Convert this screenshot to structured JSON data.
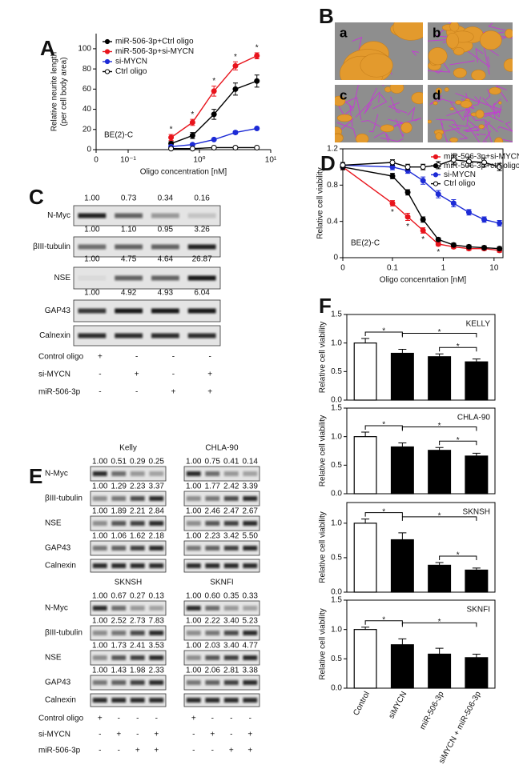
{
  "panel_labels": {
    "A": "A",
    "B": "B",
    "C": "C",
    "D": "D",
    "E": "E",
    "F": "F"
  },
  "micrographs": {
    "labels": [
      "a",
      "b",
      "c",
      "d"
    ]
  },
  "chart_data": [
    {
      "type": "line",
      "text": "BE(2)-C",
      "xlabel": "Oligo concentration [nM]",
      "ylabel": [
        "Relative neurite length",
        "(per cell body area)"
      ],
      "xscale": "log",
      "x": [
        0.4,
        0.8,
        1.6,
        3.2,
        6.4
      ],
      "xlim": [
        0,
        10
      ],
      "xticks": [
        0,
        {
          "value": 0.1,
          "label": "10⁻¹"
        },
        {
          "value": 1,
          "label": "10⁰"
        },
        {
          "value": 10,
          "label": "10¹"
        }
      ],
      "ylim": [
        0,
        115
      ],
      "yticks": [
        0,
        20,
        40,
        60,
        80,
        100
      ],
      "legend": "upper left",
      "series": [
        {
          "name": "miR-506-3p+Ctrl oligo",
          "color": "#000000",
          "filled": true,
          "values": [
            6,
            14,
            35,
            60,
            68
          ],
          "errors": [
            2,
            3,
            5,
            6,
            6
          ]
        },
        {
          "name": "miR-506-3p+si-MYCN",
          "color": "#e8141c",
          "filled": true,
          "values": [
            12,
            27,
            58,
            83,
            93
          ],
          "errors": [
            3,
            3,
            5,
            4,
            3
          ]
        },
        {
          "name": "si-MYCN",
          "color": "#1d2bd6",
          "filled": true,
          "values": [
            3,
            5,
            10,
            17,
            21
          ],
          "errors": [
            1,
            1,
            1,
            1.5,
            1
          ]
        },
        {
          "name": "Ctrl oligo",
          "color": "#000000",
          "filled": false,
          "values": [
            1,
            1,
            2,
            2,
            2
          ],
          "errors": [
            0.5,
            0.5,
            0.5,
            0.5,
            0.5
          ]
        }
      ],
      "stars": [
        "*",
        "*",
        "*",
        "*",
        "*"
      ]
    },
    {
      "type": "line",
      "text": "BE(2)-C",
      "xlabel": "Oligo concenrtation [nM]",
      "ylabel": [
        "Relative cell viability"
      ],
      "xscale": "log",
      "x": [
        0,
        0.1,
        0.2,
        0.4,
        0.8,
        1.6,
        3.2,
        6.4,
        12.8
      ],
      "xlim": [
        0,
        15
      ],
      "xticks": [
        0,
        0.1,
        1,
        10
      ],
      "ylim": [
        0,
        1.2
      ],
      "yticks": [
        0,
        0.4,
        0.8,
        1.2
      ],
      "legend": "upper right",
      "series": [
        {
          "name": "miR-506-3p+si-MYCN",
          "color": "#e8141c",
          "filled": true,
          "values": [
            1.0,
            0.6,
            0.45,
            0.3,
            0.15,
            0.12,
            0.1,
            0.1,
            0.08
          ],
          "errors": [
            0.03,
            0.03,
            0.04,
            0.03,
            0.02,
            0.02,
            0.02,
            0.02,
            0.02
          ]
        },
        {
          "name": "miR-506-3p+ctrl oligo",
          "color": "#000000",
          "filled": true,
          "values": [
            1.0,
            0.9,
            0.72,
            0.42,
            0.2,
            0.14,
            0.12,
            0.11,
            0.1
          ],
          "errors": [
            0.03,
            0.03,
            0.03,
            0.03,
            0.02,
            0.02,
            0.02,
            0.02,
            0.02
          ]
        },
        {
          "name": "si-MYCN",
          "color": "#1d2bd6",
          "filled": true,
          "values": [
            1.02,
            1.0,
            0.96,
            0.85,
            0.7,
            0.6,
            0.5,
            0.42,
            0.38
          ],
          "errors": [
            0.03,
            0.03,
            0.03,
            0.04,
            0.04,
            0.04,
            0.03,
            0.03,
            0.03
          ]
        },
        {
          "name": "Ctrl oligo",
          "color": "#000000",
          "filled": false,
          "values": [
            1.02,
            1.05,
            1.0,
            1.0,
            1.02,
            1.08,
            1.06,
            1.05,
            1.0
          ],
          "errors": [
            0.03,
            0.03,
            0.03,
            0.03,
            0.04,
            0.05,
            0.05,
            0.05,
            0.04
          ]
        }
      ],
      "stars": [
        null,
        "*",
        "*",
        "*",
        "*",
        null,
        null,
        null,
        null
      ]
    },
    {
      "type": "bar",
      "text": "KELLY",
      "ylabel": "Relative cell viability",
      "values": [
        1.0,
        0.82,
        0.76,
        0.67
      ],
      "errors": [
        0.08,
        0.07,
        0.05,
        0.05
      ],
      "colors": [
        "#ffffff",
        "#000000",
        "#000000",
        "#000000"
      ],
      "edgecolor": "#000000",
      "ylim": [
        0,
        1.5
      ],
      "yticks": [
        {
          "value": 0,
          "label": "0.0"
        },
        0.5,
        {
          "value": 1,
          "label": "1.0"
        },
        1.5
      ],
      "annotations": [
        "*",
        "*",
        "*"
      ]
    },
    {
      "type": "bar",
      "text": "CHLA-90",
      "ylabel": "Relative cell viability",
      "values": [
        1.0,
        0.82,
        0.76,
        0.66
      ],
      "errors": [
        0.08,
        0.07,
        0.05,
        0.05
      ],
      "colors": [
        "#ffffff",
        "#000000",
        "#000000",
        "#000000"
      ],
      "edgecolor": "#000000",
      "ylim": [
        0,
        1.5
      ],
      "yticks": [
        {
          "value": 0,
          "label": "0.0"
        },
        0.5,
        {
          "value": 1,
          "label": "1.0"
        },
        1.5
      ],
      "annotations": [
        "*",
        "*",
        "*"
      ]
    },
    {
      "type": "bar",
      "text": "SKNSH",
      "ylabel": "Relative cell viability",
      "values": [
        1.0,
        0.76,
        0.39,
        0.32
      ],
      "errors": [
        0.06,
        0.1,
        0.04,
        0.03
      ],
      "colors": [
        "#ffffff",
        "#000000",
        "#000000",
        "#000000"
      ],
      "edgecolor": "#000000",
      "ylim": [
        0,
        1.3
      ],
      "yticks": [
        {
          "value": 0,
          "label": "0.0"
        },
        0.5,
        {
          "value": 1,
          "label": "1.0"
        }
      ],
      "annotations": [
        "*",
        "*",
        "*"
      ]
    },
    {
      "type": "bar",
      "text": "SKNFI",
      "ylabel": "Relative cell viability",
      "categories": [
        "Control",
        "siMYCN",
        "miR-506-3p",
        "siMYCN + miR-506-3p"
      ],
      "values": [
        1.0,
        0.74,
        0.58,
        0.52
      ],
      "errors": [
        0.04,
        0.1,
        0.1,
        0.06
      ],
      "colors": [
        "#ffffff",
        "#000000",
        "#000000",
        "#000000"
      ],
      "edgecolor": "#000000",
      "ylim": [
        0,
        1.5
      ],
      "yticks": [
        {
          "value": 0,
          "label": "0.0"
        },
        0.5,
        {
          "value": 1,
          "label": "1.0"
        },
        1.5
      ],
      "annotations": [
        "*",
        "*"
      ]
    }
  ],
  "blot_c": {
    "rows": [
      {
        "name": "N-Myc",
        "quant": [
          "1.00",
          "0.73",
          "0.34",
          "0.16"
        ]
      },
      {
        "name": "βIII-tubulin",
        "quant": [
          "1.00",
          "1.10",
          "0.95",
          "3.26"
        ]
      },
      {
        "name": "NSE",
        "quant": [
          "1.00",
          "4.75",
          "4.64",
          "26.87"
        ]
      },
      {
        "name": "GAP43",
        "quant": [
          "1.00",
          "4.92",
          "4.93",
          "6.04"
        ]
      },
      {
        "name": "Calnexin"
      }
    ],
    "treatments": [
      {
        "name": "Control oligo",
        "marks": [
          "+",
          "-",
          "-",
          "-"
        ]
      },
      {
        "name": "si-MYCN",
        "marks": [
          "-",
          "+",
          "-",
          "+"
        ]
      },
      {
        "name": "miR-506-3p",
        "marks": [
          "-",
          "-",
          "+",
          "+"
        ]
      }
    ]
  },
  "blot_e": {
    "blocks": [
      {
        "row_names": [
          "N-Myc",
          "βIII-tubulin",
          "NSE",
          "GAP43",
          "Calnexin"
        ],
        "cells": [
          {
            "title": "Kelly",
            "quant": [
              [
                "1.00",
                "0.51",
                "0.29",
                "0.25"
              ],
              [
                "1.00",
                "1.29",
                "2.23",
                "3.37"
              ],
              [
                "1.00",
                "1.89",
                "2.21",
                "2.84"
              ],
              [
                "1.00",
                "1.06",
                "1.62",
                "2.18"
              ]
            ]
          },
          {
            "title": "CHLA-90",
            "quant": [
              [
                "1.00",
                "0.75",
                "0.41",
                "0.14"
              ],
              [
                "1.00",
                "1.77",
                "2.42",
                "3.39"
              ],
              [
                "1.00",
                "2.46",
                "2.47",
                "2.67"
              ],
              [
                "1.00",
                "2.23",
                "3.42",
                "5.50"
              ]
            ]
          }
        ]
      },
      {
        "row_names": [
          "N-Myc",
          "βIII-tubulin",
          "NSE",
          "GAP43",
          "Calnexin"
        ],
        "cells": [
          {
            "title": "SKNSH",
            "quant": [
              [
                "1.00",
                "0.67",
                "0.27",
                "0.13"
              ],
              [
                "1.00",
                "2.52",
                "2.73",
                "7.83"
              ],
              [
                "1.00",
                "1.73",
                "2.41",
                "3.53"
              ],
              [
                "1.00",
                "1.43",
                "1.98",
                "2.33"
              ]
            ]
          },
          {
            "title": "SKNFI",
            "quant": [
              [
                "1.00",
                "0.60",
                "0.35",
                "0.33"
              ],
              [
                "1.00",
                "2.22",
                "3.40",
                "5.23"
              ],
              [
                "1.00",
                "2.03",
                "3.40",
                "4.77"
              ],
              [
                "1.00",
                "2.06",
                "2.81",
                "3.38"
              ]
            ]
          }
        ]
      }
    ],
    "treatments": [
      {
        "name": "Control oligo",
        "marks": [
          "+",
          "-",
          "-",
          "-",
          "+",
          "-",
          "-",
          "-"
        ]
      },
      {
        "name": "si-MYCN",
        "marks": [
          "-",
          "+",
          "-",
          "+",
          "-",
          "+",
          "-",
          "+"
        ]
      },
      {
        "name": "miR-506-3p",
        "marks": [
          "-",
          "-",
          "+",
          "+",
          "-",
          "-",
          "+",
          "+"
        ]
      }
    ]
  }
}
